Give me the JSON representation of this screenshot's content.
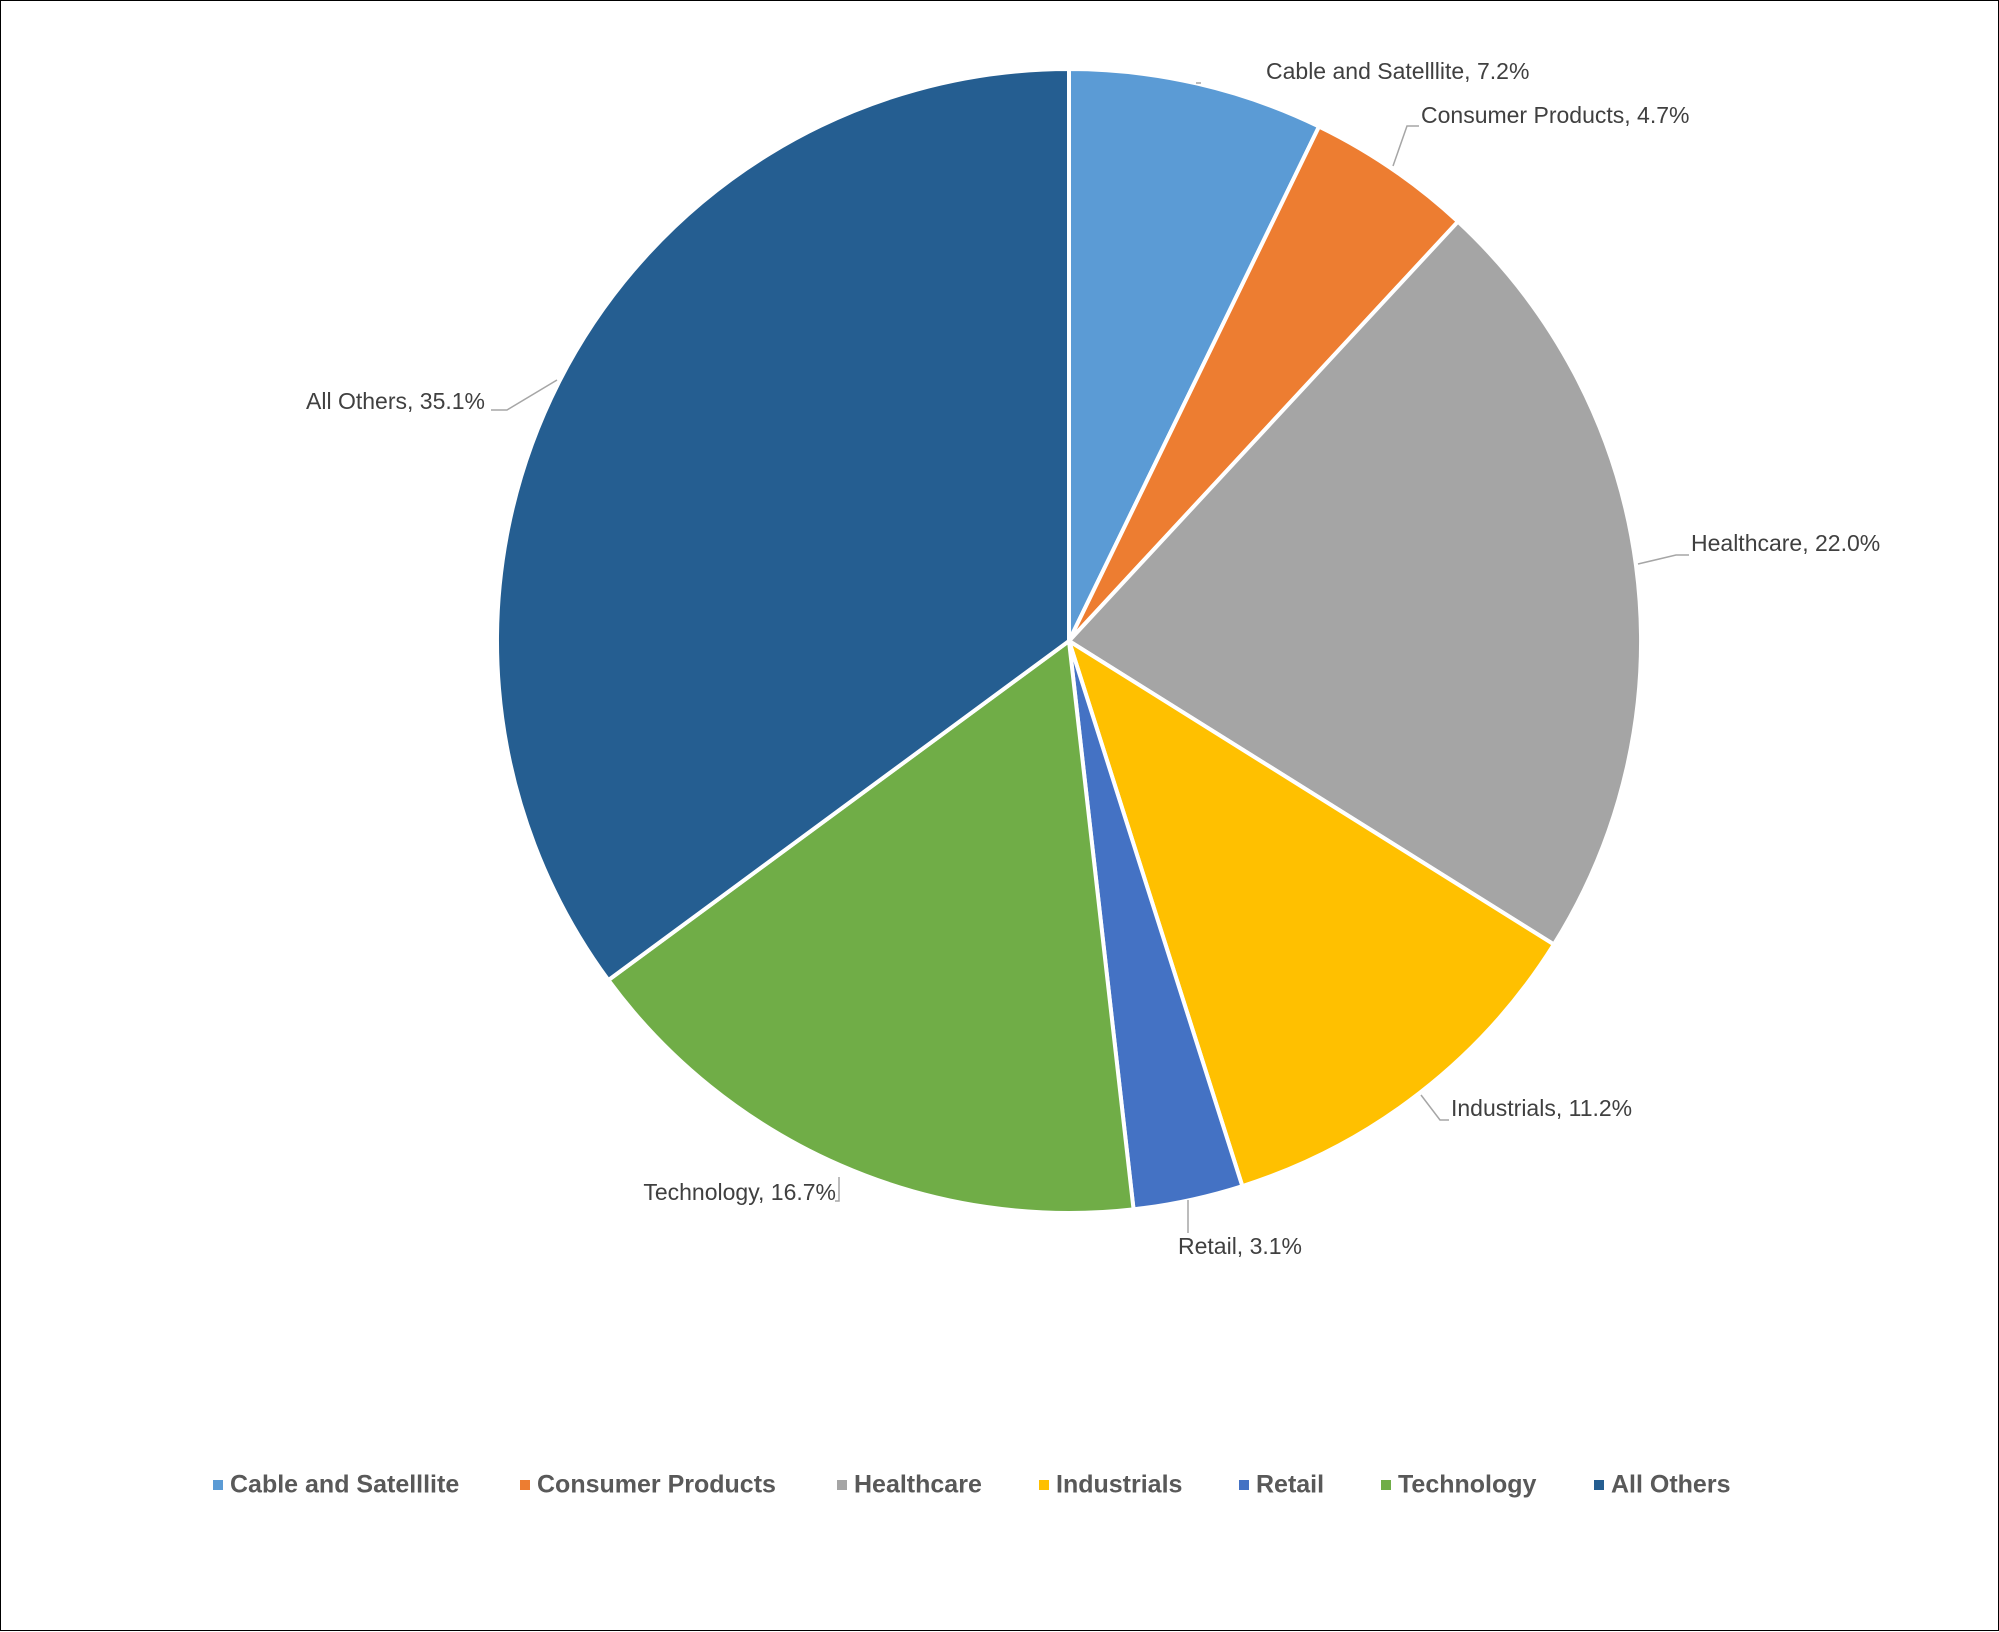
{
  "chart_data": {
    "type": "pie",
    "categories": [
      "Cable and Satelllite",
      "Consumer Products",
      "Healthcare",
      "Industrials",
      "Retail",
      "Technology",
      "All Others"
    ],
    "values": [
      7.2,
      4.7,
      22.0,
      11.2,
      3.1,
      16.7,
      35.1
    ],
    "data_labels": [
      "Cable and Satelllite, 7.2%",
      "Consumer Products, 4.7%",
      "Healthcare, 22.0%",
      "Industrials, 11.2%",
      "Retail, 3.1%",
      "Technology, 16.7%",
      "All Others, 35.1%"
    ],
    "colors": [
      "#5b9bd5",
      "#ed7d31",
      "#a5a5a5",
      "#ffc000",
      "#4472c4",
      "#70ad47",
      "#255e91"
    ],
    "unit": "%",
    "start_angle": "12 o'clock, clockwise",
    "legend_position": "bottom",
    "title": ""
  }
}
